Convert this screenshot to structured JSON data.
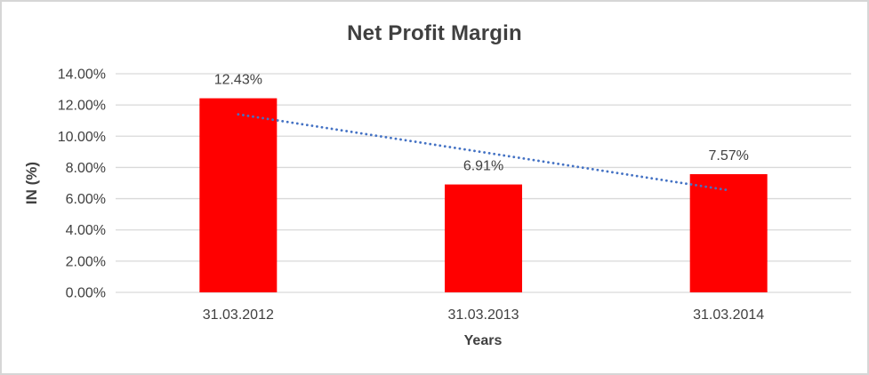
{
  "frame": {
    "background": "#ffffff",
    "border_color": "#d6d6d6"
  },
  "chart_data": {
    "type": "bar",
    "title": "Net Profit Margin",
    "xlabel": "Years",
    "ylabel": "IN (%)",
    "categories": [
      "31.03.2012",
      "31.03.2013",
      "31.03.2014"
    ],
    "values": [
      12.43,
      6.91,
      7.57
    ],
    "data_labels": [
      "12.43%",
      "6.91%",
      "7.57%"
    ],
    "ylim": [
      0,
      14
    ],
    "ytick_step": 2,
    "ytick_labels": [
      "0.00%",
      "2.00%",
      "4.00%",
      "6.00%",
      "8.00%",
      "10.00%",
      "12.00%",
      "14.00%"
    ],
    "grid": true,
    "legend": "none",
    "bar_color": "#ff0000",
    "gridline_color": "#d9d9d9",
    "text_color": "#404040",
    "trendline": {
      "type": "linear",
      "style": "dotted",
      "color": "#4472c4",
      "start_value": 11.4,
      "end_value": 6.54
    }
  }
}
